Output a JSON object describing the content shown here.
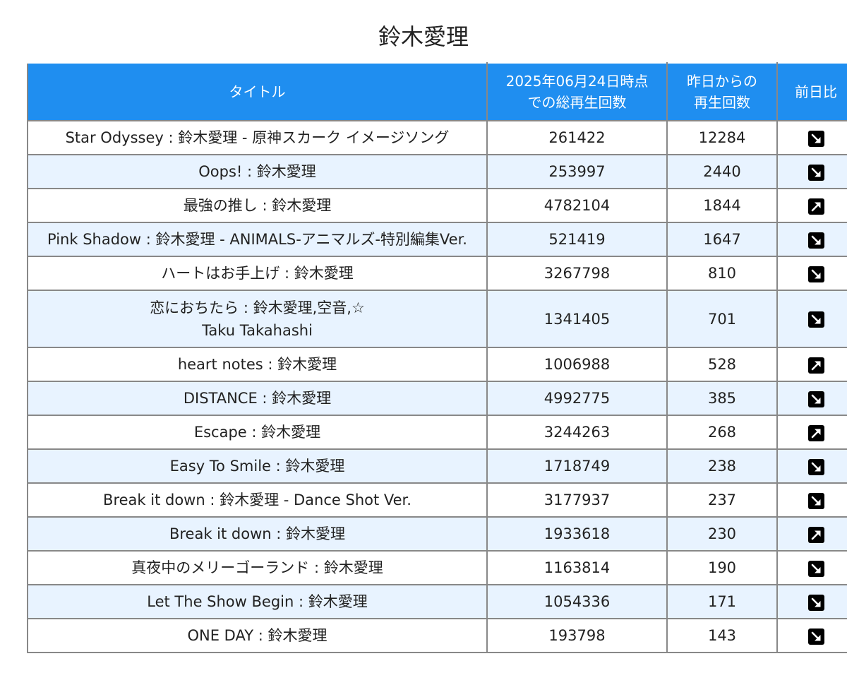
{
  "page": {
    "title": "鈴木愛理"
  },
  "table": {
    "headers": {
      "title": "タイトル",
      "total": "2025年06月24日時点\nでの総再生回数",
      "daily": "昨日からの\n再生回数",
      "trend": "前日比"
    },
    "rows": [
      {
        "title": "Star Odyssey : 鈴木愛理 - 原神スカーク イメージソング",
        "total": "261422",
        "daily": "12284",
        "trend": "down"
      },
      {
        "title": "Oops! : 鈴木愛理",
        "total": "253997",
        "daily": "2440",
        "trend": "down"
      },
      {
        "title": "最強の推し : 鈴木愛理",
        "total": "4782104",
        "daily": "1844",
        "trend": "up"
      },
      {
        "title": "Pink Shadow : 鈴木愛理 - ANIMALS-アニマルズ-特別編集Ver.",
        "total": "521419",
        "daily": "1647",
        "trend": "down"
      },
      {
        "title": "ハートはお手上げ : 鈴木愛理",
        "total": "3267798",
        "daily": "810",
        "trend": "down"
      },
      {
        "title": "恋におちたら : 鈴木愛理,空音,☆\nTaku Takahashi",
        "total": "1341405",
        "daily": "701",
        "trend": "down"
      },
      {
        "title": "heart notes : 鈴木愛理",
        "total": "1006988",
        "daily": "528",
        "trend": "up"
      },
      {
        "title": "DISTANCE : 鈴木愛理",
        "total": "4992775",
        "daily": "385",
        "trend": "down"
      },
      {
        "title": "Escape : 鈴木愛理",
        "total": "3244263",
        "daily": "268",
        "trend": "up"
      },
      {
        "title": "Easy To Smile : 鈴木愛理",
        "total": "1718749",
        "daily": "238",
        "trend": "down"
      },
      {
        "title": "Break it down : 鈴木愛理 - Dance Shot Ver.",
        "total": "3177937",
        "daily": "237",
        "trend": "down"
      },
      {
        "title": "Break it down : 鈴木愛理",
        "total": "1933618",
        "daily": "230",
        "trend": "up"
      },
      {
        "title": "真夜中のメリーゴーランド : 鈴木愛理",
        "total": "1163814",
        "daily": "190",
        "trend": "down"
      },
      {
        "title": "Let The Show Begin : 鈴木愛理",
        "total": "1054336",
        "daily": "171",
        "trend": "down"
      },
      {
        "title": "ONE DAY : 鈴木愛理",
        "total": "193798",
        "daily": "143",
        "trend": "down"
      }
    ]
  },
  "colors": {
    "header_bg": "#1f8ef0",
    "stripe_bg": "#e8f3ff",
    "border": "#888888"
  },
  "icons": {
    "down": "arrow-down-right-icon",
    "up": "arrow-up-right-icon"
  }
}
